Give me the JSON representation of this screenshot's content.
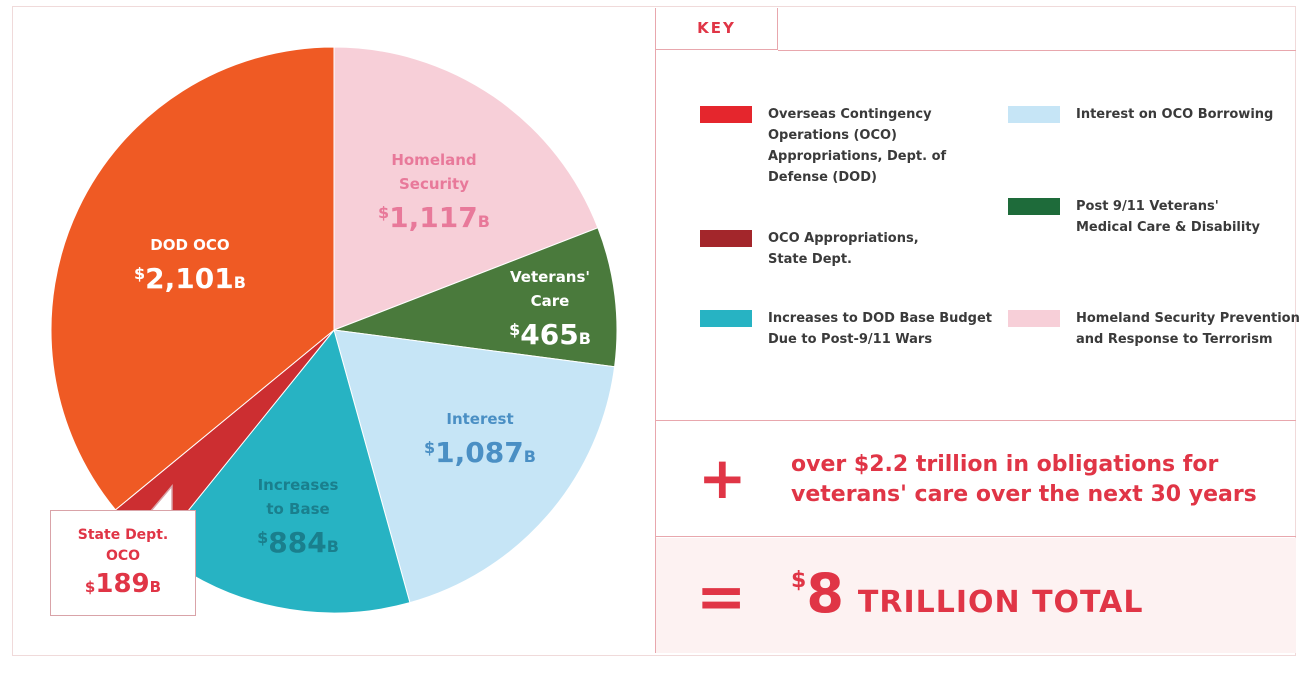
{
  "chart_data": {
    "type": "pie",
    "unit": "B",
    "currency": "$",
    "slices": [
      {
        "key": "homeland",
        "label": "Homeland Security",
        "value": 1117,
        "display": "1,117",
        "color": "#f7cfd8",
        "text_color": "#e8799a"
      },
      {
        "key": "veterans",
        "label": "Veterans' Care",
        "value": 465,
        "display": "465",
        "color": "#4a7a3c",
        "text_color": "#ffffff"
      },
      {
        "key": "interest",
        "label": "Interest",
        "value": 1087,
        "display": "1,087",
        "color": "#c6e5f6",
        "text_color": "#4a8fc4"
      },
      {
        "key": "base",
        "label": "Increases to Base",
        "value": 884,
        "display": "884",
        "color": "#27b3c3",
        "text_color": "#1a7f8d"
      },
      {
        "key": "state",
        "label": "State Dept. OCO",
        "value": 189,
        "display": "189",
        "color": "#cc2e31",
        "text_color": "#e03546"
      },
      {
        "key": "dod",
        "label": "DOD OCO",
        "value": 2101,
        "display": "2,101",
        "color": "#ef5a24",
        "text_color": "#ffffff"
      }
    ],
    "start_angle_deg": 0
  },
  "pie_labels": {
    "homeland": [
      "Homeland",
      "Security"
    ],
    "veterans": [
      "Veterans'",
      "Care"
    ],
    "interest": [
      "Interest"
    ],
    "base": [
      "Increases",
      "to Base"
    ],
    "dod": [
      "DOD OCO"
    ]
  },
  "callout": {
    "name_line1": "State Dept.",
    "name_line2": "OCO",
    "sign": "$",
    "value": "189",
    "unit": "B"
  },
  "key": {
    "title": "KEY",
    "items": [
      {
        "label": "Overseas Contingency Operations (OCO) Appropriations, Dept. of Defense (DOD)",
        "color": "#e5262d"
      },
      {
        "label": "OCO Appropriations, State Dept.",
        "color": "#a3262b"
      },
      {
        "label": "Increases to DOD Base Budget Due to Post-9/11 Wars",
        "color": "#27b3c3"
      },
      {
        "label": "Interest on OCO Borrowing",
        "color": "#c6e5f6"
      },
      {
        "label": "Post 9/11 Veterans' Medical Care & Disability",
        "color": "#1e6b3a"
      },
      {
        "label": "Homeland Security Prevention and Response to Terrorism",
        "color": "#f7cfd8"
      }
    ]
  },
  "plus_row": {
    "sign": "+",
    "text": "over $2.2 trillion in obligations for veterans' care over the next 30 years"
  },
  "total_row": {
    "sign": "=",
    "dollar": "$",
    "amount": "8",
    "words": "TRILLION TOTAL"
  },
  "colors": {
    "accent": "#e03546",
    "border": "#e8a7ad"
  }
}
